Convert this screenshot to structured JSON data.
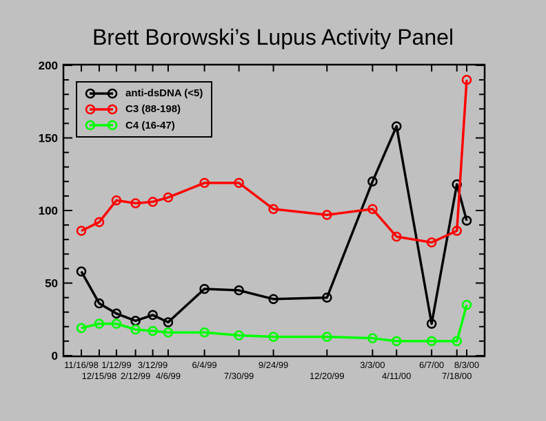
{
  "window": {
    "background_color": "#c0c0c0",
    "axis_color": "#000000"
  },
  "chart_data": {
    "type": "line",
    "title": "Brett Borowski’s Lupus Activity Panel",
    "xlabel": "",
    "ylabel": "",
    "ylim": [
      0,
      200
    ],
    "y_major_ticks": [
      0,
      50,
      100,
      150,
      200
    ],
    "y_minor_step": 10,
    "grid": false,
    "legend_position": "top-left-inside",
    "x_tick_labels": [
      "11/16/98",
      "12/15/98",
      "1/12/99",
      "2/12/99",
      "3/12/99",
      "4/6/99",
      "6/4/99",
      "7/30/99",
      "9/24/99",
      "12/20/99",
      "3/3/00",
      "4/11/00",
      "6/7/00",
      "7/18/00",
      "8/3/00"
    ],
    "x_days": [
      0,
      29,
      57,
      88,
      116,
      141,
      200,
      256,
      312,
      399,
      473,
      512,
      569,
      610,
      626
    ],
    "series": [
      {
        "name": "anti-dsDNA (<5)",
        "color": "#000000",
        "values": [
          58,
          36,
          29,
          24,
          28,
          23,
          46,
          45,
          39,
          40,
          120,
          158,
          22,
          118,
          93
        ]
      },
      {
        "name": "C3 (88-198)",
        "color": "#ff0000",
        "values": [
          86,
          92,
          107,
          105,
          106,
          109,
          119,
          119,
          101,
          97,
          101,
          82,
          78,
          86,
          190
        ]
      },
      {
        "name": "C4 (16-47)",
        "color": "#00ff00",
        "values": [
          19,
          22,
          22,
          18,
          17,
          16,
          16,
          14,
          13,
          13,
          12,
          10,
          10,
          10,
          35
        ]
      }
    ]
  }
}
